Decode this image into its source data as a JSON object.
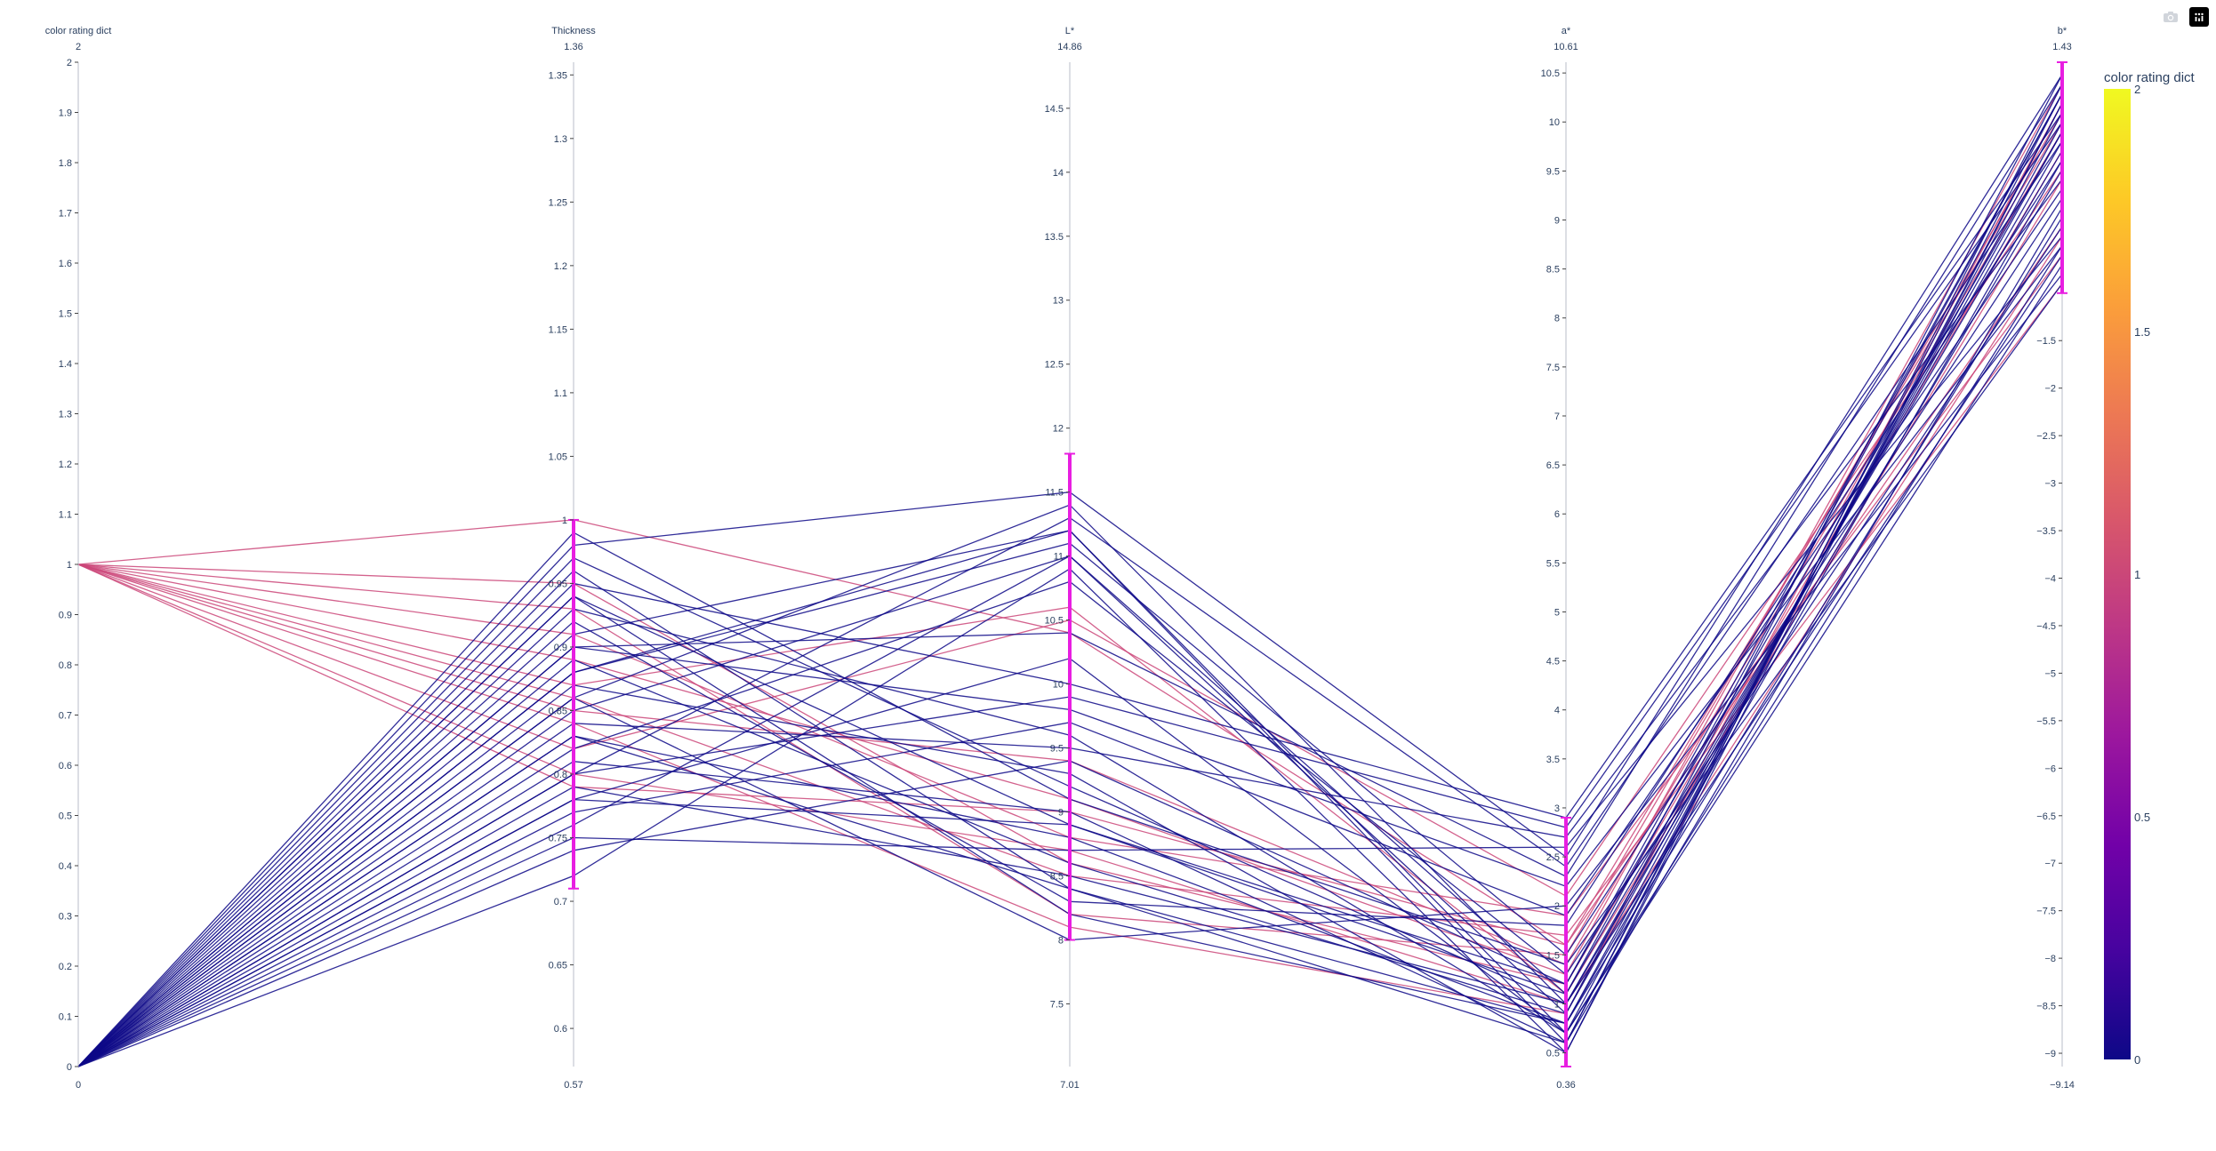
{
  "modebar": {
    "camera_label": "Download plot as a png",
    "plotly_label": "Produced with Plotly"
  },
  "chart_data": {
    "type": "parallel_coordinates",
    "colorscale_name": "Plasma",
    "colorscale": [
      "#0d0887",
      "#46039f",
      "#7201a8",
      "#9c179e",
      "#bd3786",
      "#d8576b",
      "#ed7953",
      "#fb9f3a",
      "#fdca26",
      "#f0f921"
    ],
    "color_range": [
      0,
      2
    ],
    "colorbar": {
      "title": "color rating dict",
      "ticks": [
        0,
        0.5,
        1,
        1.5,
        2
      ]
    },
    "brush_color": "#e81ee1",
    "dimensions": [
      {
        "label": "color rating dict",
        "range": [
          0,
          2
        ],
        "range_labels": [
          "0",
          "2"
        ],
        "ticks": [
          0,
          0.1,
          0.2,
          0.3,
          0.4,
          0.5,
          0.6,
          0.7,
          0.8,
          0.9,
          1,
          1.1,
          1.2,
          1.3,
          1.4,
          1.5,
          1.6,
          1.7,
          1.8,
          1.9,
          2
        ],
        "tick_labels": [
          "0",
          "0.1",
          "0.2",
          "0.3",
          "0.4",
          "0.5",
          "0.6",
          "0.7",
          "0.8",
          "0.9",
          "1",
          "1.1",
          "1.2",
          "1.3",
          "1.4",
          "1.5",
          "1.6",
          "1.7",
          "1.8",
          "1.9",
          "2"
        ]
      },
      {
        "label": "Thickness",
        "range": [
          0.57,
          1.36
        ],
        "range_labels": [
          "0.57",
          "1.36"
        ],
        "ticks": [
          0.6,
          0.65,
          0.7,
          0.75,
          0.8,
          0.85,
          0.9,
          0.95,
          1,
          1.05,
          1.1,
          1.15,
          1.2,
          1.25,
          1.3,
          1.35
        ],
        "tick_labels": [
          "0.6",
          "0.65",
          "0.7",
          "0.75",
          "0.8",
          "0.85",
          "0.9",
          "0.95",
          "1",
          "1.05",
          "1.1",
          "1.15",
          "1.2",
          "1.25",
          "1.3",
          "1.35"
        ],
        "constraint": [
          0.71,
          1.0
        ]
      },
      {
        "label": "L*",
        "range": [
          7.01,
          14.86
        ],
        "range_labels": [
          "7.01",
          "14.86"
        ],
        "ticks": [
          7.5,
          8,
          8.5,
          9,
          9.5,
          10,
          10.5,
          11,
          11.5,
          12,
          12.5,
          13,
          13.5,
          14,
          14.5
        ],
        "tick_labels": [
          "7.5",
          "8",
          "8.5",
          "9",
          "9.5",
          "10",
          "10.5",
          "11",
          "11.5",
          "12",
          "12.5",
          "13",
          "13.5",
          "14",
          "14.5"
        ],
        "constraint": [
          8.0,
          11.8
        ]
      },
      {
        "label": "a*",
        "range": [
          0.36,
          10.61
        ],
        "range_labels": [
          "0.36",
          "10.61"
        ],
        "ticks": [
          0.5,
          1,
          1.5,
          2,
          2.5,
          3,
          3.5,
          4,
          4.5,
          5,
          5.5,
          6,
          6.5,
          7,
          7.5,
          8,
          8.5,
          9,
          9.5,
          10,
          10.5
        ],
        "tick_labels": [
          "0.5",
          "1",
          "1.5",
          "2",
          "2.5",
          "3",
          "3.5",
          "4",
          "4.5",
          "5",
          "5.5",
          "6",
          "6.5",
          "7",
          "7.5",
          "8",
          "8.5",
          "9",
          "9.5",
          "10",
          "10.5"
        ],
        "constraint": [
          0.36,
          2.9
        ]
      },
      {
        "label": "b*",
        "range": [
          -9.14,
          1.43
        ],
        "range_labels": [
          "−9.14",
          "1.43"
        ],
        "ticks": [
          -9,
          -8.5,
          -8,
          -7.5,
          -7,
          -6.5,
          -6,
          -5.5,
          -5,
          -4.5,
          -4,
          -3.5,
          -3,
          -2.5,
          -2,
          -1.5
        ],
        "tick_labels": [
          "−9",
          "−8.5",
          "−8",
          "−7.5",
          "−7",
          "−6.5",
          "−6",
          "−5.5",
          "−5",
          "−4.5",
          "−4",
          "−3.5",
          "−3",
          "−2.5",
          "−2",
          "−1.5"
        ],
        "constraint": [
          -1.0,
          1.43
        ]
      }
    ],
    "records": [
      {
        "color": 1,
        "values": [
          1,
          1.0,
          10.4,
          1.6,
          -0.3
        ]
      },
      {
        "color": 1,
        "values": [
          1,
          0.95,
          8.6,
          1.2,
          0.5
        ]
      },
      {
        "color": 1,
        "values": [
          1,
          0.93,
          8.2,
          1.5,
          0.9
        ]
      },
      {
        "color": 1,
        "values": [
          1,
          0.91,
          8.8,
          1.9,
          -0.6
        ]
      },
      {
        "color": 1,
        "values": [
          1,
          0.89,
          9.1,
          1.3,
          1.2
        ]
      },
      {
        "color": 1,
        "values": [
          1,
          0.87,
          10.6,
          1.1,
          0.2
        ]
      },
      {
        "color": 1,
        "values": [
          1,
          0.86,
          8.5,
          1.7,
          -0.9
        ]
      },
      {
        "color": 1,
        "values": [
          1,
          0.85,
          9.4,
          1.4,
          0.7
        ]
      },
      {
        "color": 1,
        "values": [
          1,
          0.84,
          8.1,
          0.9,
          1.0
        ]
      },
      {
        "color": 1,
        "values": [
          1,
          0.82,
          10.5,
          2.1,
          0.3
        ]
      },
      {
        "color": 1,
        "values": [
          1,
          0.8,
          8.7,
          1.0,
          -0.4
        ]
      },
      {
        "color": 1,
        "values": [
          1,
          0.79,
          9.0,
          1.6,
          0.8
        ]
      },
      {
        "color": 0,
        "values": [
          0,
          0.98,
          11.5,
          2.5,
          1.3
        ]
      },
      {
        "color": 0,
        "values": [
          0,
          0.97,
          9.2,
          1.0,
          0.6
        ]
      },
      {
        "color": 0,
        "values": [
          0,
          0.96,
          8.4,
          0.8,
          -0.2
        ]
      },
      {
        "color": 0,
        "values": [
          0,
          0.95,
          10.0,
          2.9,
          0.9
        ]
      },
      {
        "color": 0,
        "values": [
          0,
          0.94,
          8.9,
          1.2,
          1.1
        ]
      },
      {
        "color": 0,
        "values": [
          0,
          0.93,
          9.6,
          0.7,
          -0.7
        ]
      },
      {
        "color": 0,
        "values": [
          0,
          0.92,
          8.3,
          1.8,
          0.4
        ]
      },
      {
        "color": 0,
        "values": [
          0,
          0.91,
          11.2,
          0.6,
          1.0
        ]
      },
      {
        "color": 0,
        "values": [
          0,
          0.9,
          9.8,
          2.2,
          -0.5
        ]
      },
      {
        "color": 0,
        "values": [
          0,
          0.89,
          8.6,
          0.9,
          0.7
        ]
      },
      {
        "color": 0,
        "values": [
          0,
          0.88,
          11.1,
          1.5,
          0.0
        ]
      },
      {
        "color": 0,
        "values": [
          0,
          0.87,
          9.3,
          0.5,
          1.2
        ]
      },
      {
        "color": 0,
        "values": [
          0,
          0.86,
          8.0,
          2.0,
          -0.8
        ]
      },
      {
        "color": 0,
        "values": [
          0,
          0.85,
          11.0,
          1.1,
          0.5
        ]
      },
      {
        "color": 0,
        "values": [
          0,
          0.84,
          9.5,
          2.7,
          0.2
        ]
      },
      {
        "color": 0,
        "values": [
          0,
          0.83,
          8.8,
          0.8,
          0.8
        ]
      },
      {
        "color": 0,
        "values": [
          0,
          0.82,
          10.8,
          1.3,
          -0.3
        ]
      },
      {
        "color": 0,
        "values": [
          0,
          0.81,
          9.0,
          0.6,
          1.1
        ]
      },
      {
        "color": 0,
        "values": [
          0,
          0.8,
          11.3,
          2.4,
          0.6
        ]
      },
      {
        "color": 0,
        "values": [
          0,
          0.79,
          8.5,
          1.0,
          -0.6
        ]
      },
      {
        "color": 0,
        "values": [
          0,
          0.78,
          10.2,
          0.7,
          0.9
        ]
      },
      {
        "color": 0,
        "values": [
          0,
          0.77,
          9.7,
          1.9,
          0.1
        ]
      },
      {
        "color": 0,
        "values": [
          0,
          0.76,
          11.0,
          0.9,
          1.3
        ]
      },
      {
        "color": 0,
        "values": [
          0,
          0.75,
          8.7,
          2.6,
          -0.4
        ]
      },
      {
        "color": 0,
        "values": [
          0,
          0.74,
          9.4,
          1.2,
          0.7
        ]
      },
      {
        "color": 0,
        "values": [
          0,
          0.72,
          10.9,
          0.5,
          1.0
        ]
      },
      {
        "color": 0,
        "values": [
          0,
          0.99,
          9.1,
          1.4,
          -0.9
        ]
      },
      {
        "color": 0,
        "values": [
          0,
          0.94,
          8.2,
          0.8,
          0.4
        ]
      },
      {
        "color": 0,
        "values": [
          0,
          0.9,
          10.4,
          2.3,
          1.2
        ]
      },
      {
        "color": 0,
        "values": [
          0,
          0.86,
          11.4,
          1.0,
          0.3
        ]
      },
      {
        "color": 0,
        "values": [
          0,
          0.83,
          8.4,
          0.6,
          -0.1
        ]
      },
      {
        "color": 0,
        "values": [
          0,
          0.8,
          9.9,
          2.8,
          0.8
        ]
      },
      {
        "color": 0,
        "values": [
          0,
          0.78,
          8.9,
          1.1,
          1.1
        ]
      },
      {
        "color": 0,
        "values": [
          0,
          0.88,
          11.2,
          0.7,
          -0.5
        ]
      }
    ]
  }
}
